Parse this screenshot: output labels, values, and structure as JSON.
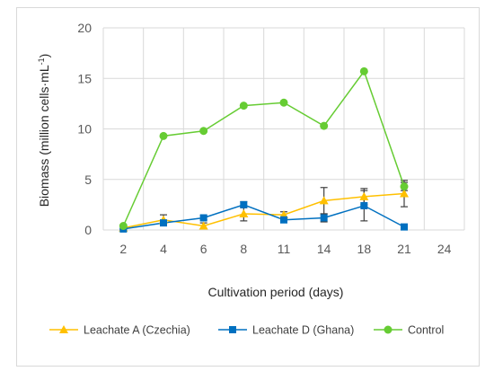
{
  "chart_data": {
    "type": "line",
    "title": "",
    "xlabel": "Cultivation period (days)",
    "ylabel": "Biomass (million cells·mL",
    "ylabel_sup": "-1",
    "ylabel_close": ")",
    "categories": [
      "2",
      "4",
      "6",
      "8",
      "11",
      "14",
      "18",
      "21",
      "24"
    ],
    "ylim": [
      0,
      20
    ],
    "yticks": [
      0,
      5,
      10,
      15,
      20
    ],
    "grid": true,
    "legend_position": "bottom",
    "series": [
      {
        "name": "Leachate A (Czechia)",
        "color": "#FFC000",
        "marker": "triangle",
        "values": [
          0.2,
          1.0,
          0.4,
          1.6,
          1.5,
          2.9,
          3.3,
          3.6,
          null
        ],
        "errors": [
          0.1,
          0.5,
          0.3,
          0.7,
          0.3,
          1.3,
          0.8,
          1.3,
          null
        ]
      },
      {
        "name": "Leachate D (Ghana)",
        "color": "#0070C0",
        "marker": "square",
        "values": [
          0.1,
          0.7,
          1.2,
          2.5,
          1.0,
          1.2,
          2.4,
          0.3,
          null
        ],
        "errors": [
          0.05,
          0.2,
          0.2,
          0.3,
          0.2,
          0.4,
          1.5,
          0.1,
          null
        ]
      },
      {
        "name": "Control",
        "color": "#66CC33",
        "marker": "circle",
        "values": [
          0.4,
          9.3,
          9.8,
          12.3,
          12.6,
          10.3,
          15.7,
          4.3,
          null
        ],
        "errors": [
          0,
          0,
          0,
          0,
          0,
          0,
          0,
          0.4,
          null
        ]
      }
    ]
  }
}
